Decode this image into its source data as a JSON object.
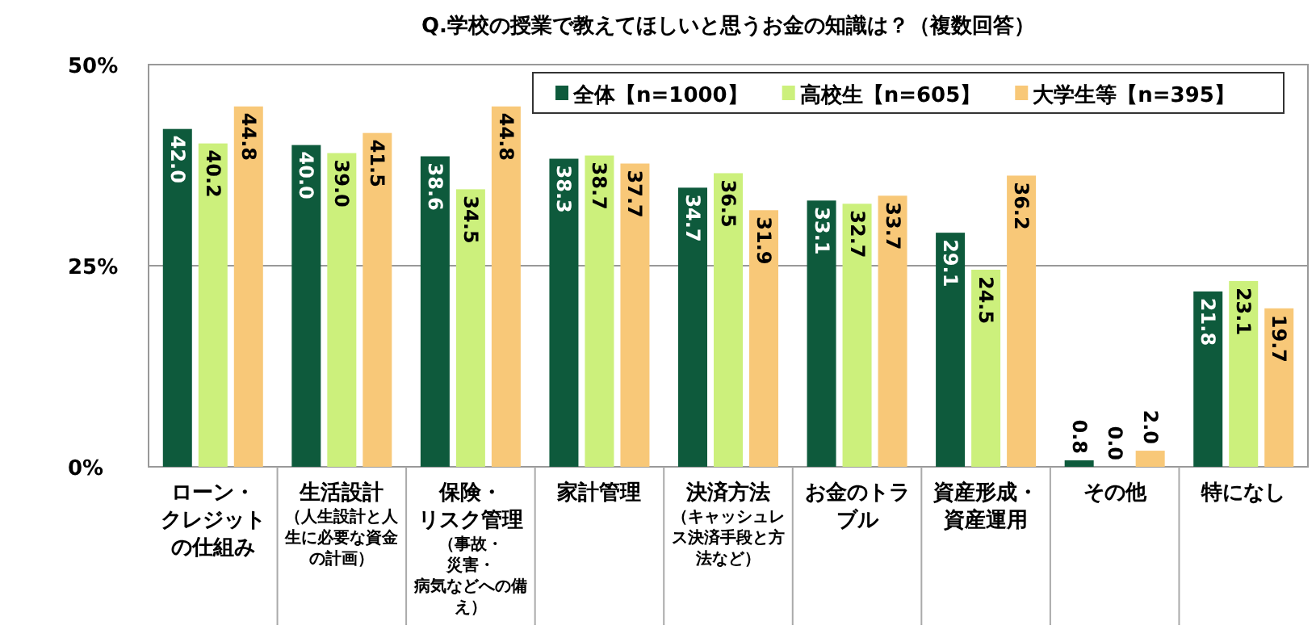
{
  "chart_data": {
    "type": "bar",
    "title": "Q.学校の授業で教えてほしいと思うお金の知識は？（複数回答）",
    "categories": [
      "ローン・クレジットの仕組み",
      "生活設計",
      "保険・リスク管理",
      "家計管理",
      "決済方法",
      "お金のトラブル",
      "資産形成・資産運用",
      "その他",
      "特になし"
    ],
    "series": [
      {
        "name": "全体【n=1000】",
        "color": "#0e5a3c",
        "values": [
          42.0,
          40.0,
          38.6,
          38.3,
          34.7,
          33.1,
          29.1,
          0.8,
          21.8
        ],
        "value_labels": [
          "42.0",
          "40.0",
          "38.6",
          "38.3",
          "34.7",
          "33.1",
          "29.1",
          "0.8",
          "21.8"
        ]
      },
      {
        "name": "高校生【n=605】",
        "color": "#ccf07c",
        "values": [
          40.2,
          39.0,
          34.5,
          38.7,
          36.5,
          32.7,
          24.5,
          0.0,
          23.1
        ],
        "value_labels": [
          "40.2",
          "39.0",
          "34.5",
          "38.7",
          "36.5",
          "32.7",
          "24.5",
          "0.0",
          "23.1"
        ]
      },
      {
        "name": "大学生等【n=395】",
        "color": "#f8c878",
        "values": [
          44.8,
          41.5,
          44.8,
          37.7,
          31.9,
          33.7,
          36.2,
          2.0,
          19.7
        ],
        "value_labels": [
          "44.8",
          "41.5",
          "44.8",
          "37.7",
          "31.9",
          "33.7",
          "36.2",
          "2.0",
          "19.7"
        ]
      }
    ],
    "annotations": [
      "（人生設計と人生に必要な資金の計画）",
      "（事故・災害・病気などへの備え）",
      "（キャッシュレス決済手段と方法など）"
    ],
    "ylim": [
      0,
      50
    ],
    "yticks": [
      {
        "value": 0,
        "label": "0%"
      },
      {
        "value": 25,
        "label": "25%"
      },
      {
        "value": 50,
        "label": "50%"
      }
    ],
    "grid": "y",
    "legend": "top right"
  }
}
